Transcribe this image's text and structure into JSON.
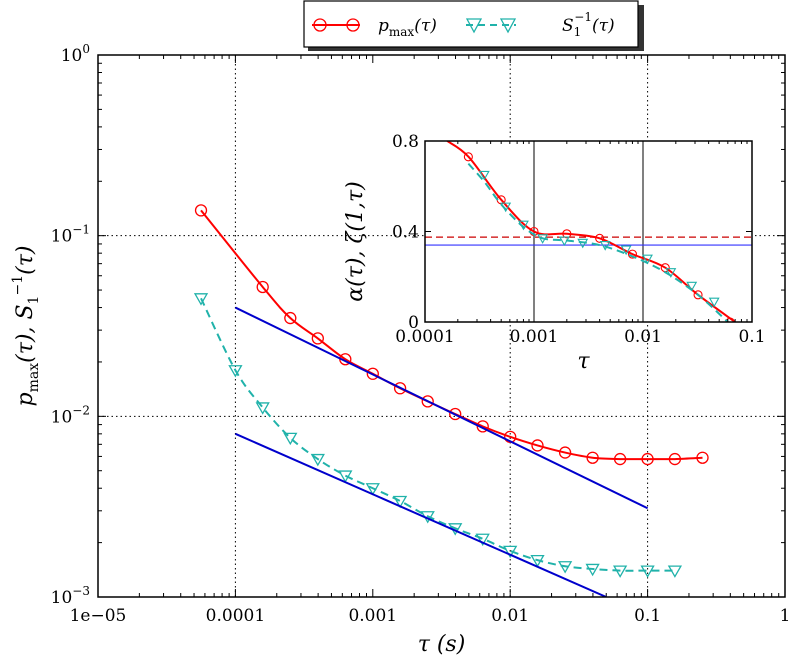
{
  "chart_data": [
    {
      "type": "line",
      "scale": "log-log",
      "xlabel": "τ (s)",
      "ylabel": "p_max(τ), S_1^{-1}(τ)",
      "xlim": [
        1e-05,
        1
      ],
      "ylim": [
        0.001,
        1
      ],
      "grid": "dotted at 0.0001, 0.01, 0.1 (x) and 0.1, 0.01 (y)",
      "x_ticks": [
        {
          "value": 1e-05,
          "label": "1e−05"
        },
        {
          "value": 0.0001,
          "label": "0.0001"
        },
        {
          "value": 0.001,
          "label": "0.001"
        },
        {
          "value": 0.01,
          "label": "0.01"
        },
        {
          "value": 0.1,
          "label": "0.1"
        },
        {
          "value": 1,
          "label": "1"
        }
      ],
      "y_ticks": [
        {
          "value": 0.001,
          "base": "10",
          "exp": "−3"
        },
        {
          "value": 0.01,
          "base": "10",
          "exp": "−2"
        },
        {
          "value": 0.1,
          "base": "10",
          "exp": "−1"
        },
        {
          "value": 1,
          "base": "10",
          "exp": "0"
        }
      ],
      "legend": {
        "position": "top",
        "entries": [
          {
            "label_main": "p",
            "label_sub": "max",
            "label_tail": "(τ)",
            "color": "#ff0000",
            "marker": "circle",
            "style": "solid"
          },
          {
            "label_main": "S",
            "label_sub": "1",
            "label_sup": "−1",
            "label_tail": "(τ)",
            "color": "#20b2aa",
            "marker": "triangle-down",
            "style": "dashed"
          }
        ]
      },
      "series": [
        {
          "name": "p_max(τ)",
          "color": "#ff0000",
          "marker": "circle",
          "style": "solid",
          "x": [
            5.62e-05,
            0.000158,
            0.000251,
            0.000398,
            0.000631,
            0.001,
            0.00158,
            0.00251,
            0.00398,
            0.00631,
            0.01,
            0.0158,
            0.0251,
            0.0398,
            0.0631,
            0.1,
            0.158,
            0.251
          ],
          "y": [
            0.138,
            0.052,
            0.035,
            0.027,
            0.0207,
            0.0172,
            0.0143,
            0.0121,
            0.0103,
            0.0088,
            0.0077,
            0.0069,
            0.0063,
            0.0059,
            0.0058,
            0.0058,
            0.0058,
            0.0059
          ]
        },
        {
          "name": "S_1^{-1}(τ)",
          "color": "#20b2aa",
          "marker": "triangle-down",
          "style": "dashed",
          "x": [
            5.62e-05,
            0.0001,
            0.000158,
            0.000251,
            0.000398,
            0.000631,
            0.001,
            0.00158,
            0.00251,
            0.00398,
            0.00631,
            0.01,
            0.0158,
            0.0251,
            0.0398,
            0.0631,
            0.1,
            0.158
          ],
          "y": [
            0.045,
            0.018,
            0.0112,
            0.0076,
            0.0058,
            0.0047,
            0.004,
            0.0034,
            0.0028,
            0.0024,
            0.0021,
            0.0018,
            0.0016,
            0.00148,
            0.00143,
            0.0014,
            0.0014,
            0.0014
          ]
        },
        {
          "name": "power-law fit (upper)",
          "color": "#0000cc",
          "marker": "none",
          "style": "solid",
          "x": [
            0.0001,
            0.1
          ],
          "y": [
            0.04,
            0.0031
          ]
        },
        {
          "name": "power-law fit (lower)",
          "color": "#0000cc",
          "marker": "none",
          "style": "solid",
          "x": [
            0.0001,
            0.05
          ],
          "y": [
            0.008,
            0.001
          ]
        }
      ]
    },
    {
      "type": "line",
      "scale": "semilog-x",
      "position": "inset, upper right",
      "xlabel": "τ",
      "ylabel": "α(τ), ζ(1,τ)",
      "xlim": [
        0.0001,
        0.1
      ],
      "ylim": [
        0,
        0.8
      ],
      "x_ticks": [
        {
          "value": 0.0001,
          "label": "0.0001"
        },
        {
          "value": 0.001,
          "label": "0.001"
        },
        {
          "value": 0.01,
          "label": "0.01"
        },
        {
          "value": 0.1,
          "label": "0.1"
        }
      ],
      "y_ticks": [
        {
          "value": 0,
          "label": "0"
        },
        {
          "value": 0.4,
          "label": "0.4"
        },
        {
          "value": 0.8,
          "label": "0.8"
        }
      ],
      "vertical_lines": [
        0.001,
        0.01
      ],
      "horizontal_lines": [
        {
          "y": 0.375,
          "color": "#cc0000",
          "style": "dashed"
        },
        {
          "y": 0.34,
          "color": "#3333ff",
          "style": "solid"
        }
      ],
      "series": [
        {
          "name": "α(τ)",
          "color": "#ff0000",
          "marker": "circle",
          "style": "solid",
          "x": [
            0.00016,
            0.000251,
            0.000501,
            0.001,
            0.002,
            0.004,
            0.008,
            0.016,
            0.032,
            0.07
          ],
          "y": [
            0.8,
            0.73,
            0.54,
            0.4,
            0.39,
            0.37,
            0.3,
            0.24,
            0.12,
            0.0
          ],
          "marker_x": [
            0.00025,
            0.0005,
            0.001,
            0.002,
            0.004,
            0.008,
            0.016,
            0.032,
            0.063
          ],
          "marker_y": [
            0.73,
            0.54,
            0.4,
            0.39,
            0.37,
            0.3,
            0.24,
            0.12,
            0.0
          ]
        },
        {
          "name": "ζ(1,τ)",
          "color": "#20b2aa",
          "marker": "triangle-down",
          "style": "dashed",
          "x": [
            0.00025,
            0.00035,
            0.0005,
            0.0008,
            0.0012,
            0.002,
            0.004,
            0.008,
            0.016,
            0.032,
            0.06
          ],
          "y": [
            0.7,
            0.62,
            0.52,
            0.42,
            0.37,
            0.36,
            0.34,
            0.29,
            0.22,
            0.12,
            0.0
          ],
          "marker_x": [
            0.00035,
            0.00055,
            0.0008,
            0.0012,
            0.0019,
            0.0028,
            0.0045,
            0.007,
            0.011,
            0.018,
            0.028,
            0.045
          ],
          "marker_y": [
            0.65,
            0.51,
            0.43,
            0.37,
            0.36,
            0.35,
            0.34,
            0.32,
            0.28,
            0.22,
            0.16,
            0.09
          ]
        }
      ]
    }
  ]
}
